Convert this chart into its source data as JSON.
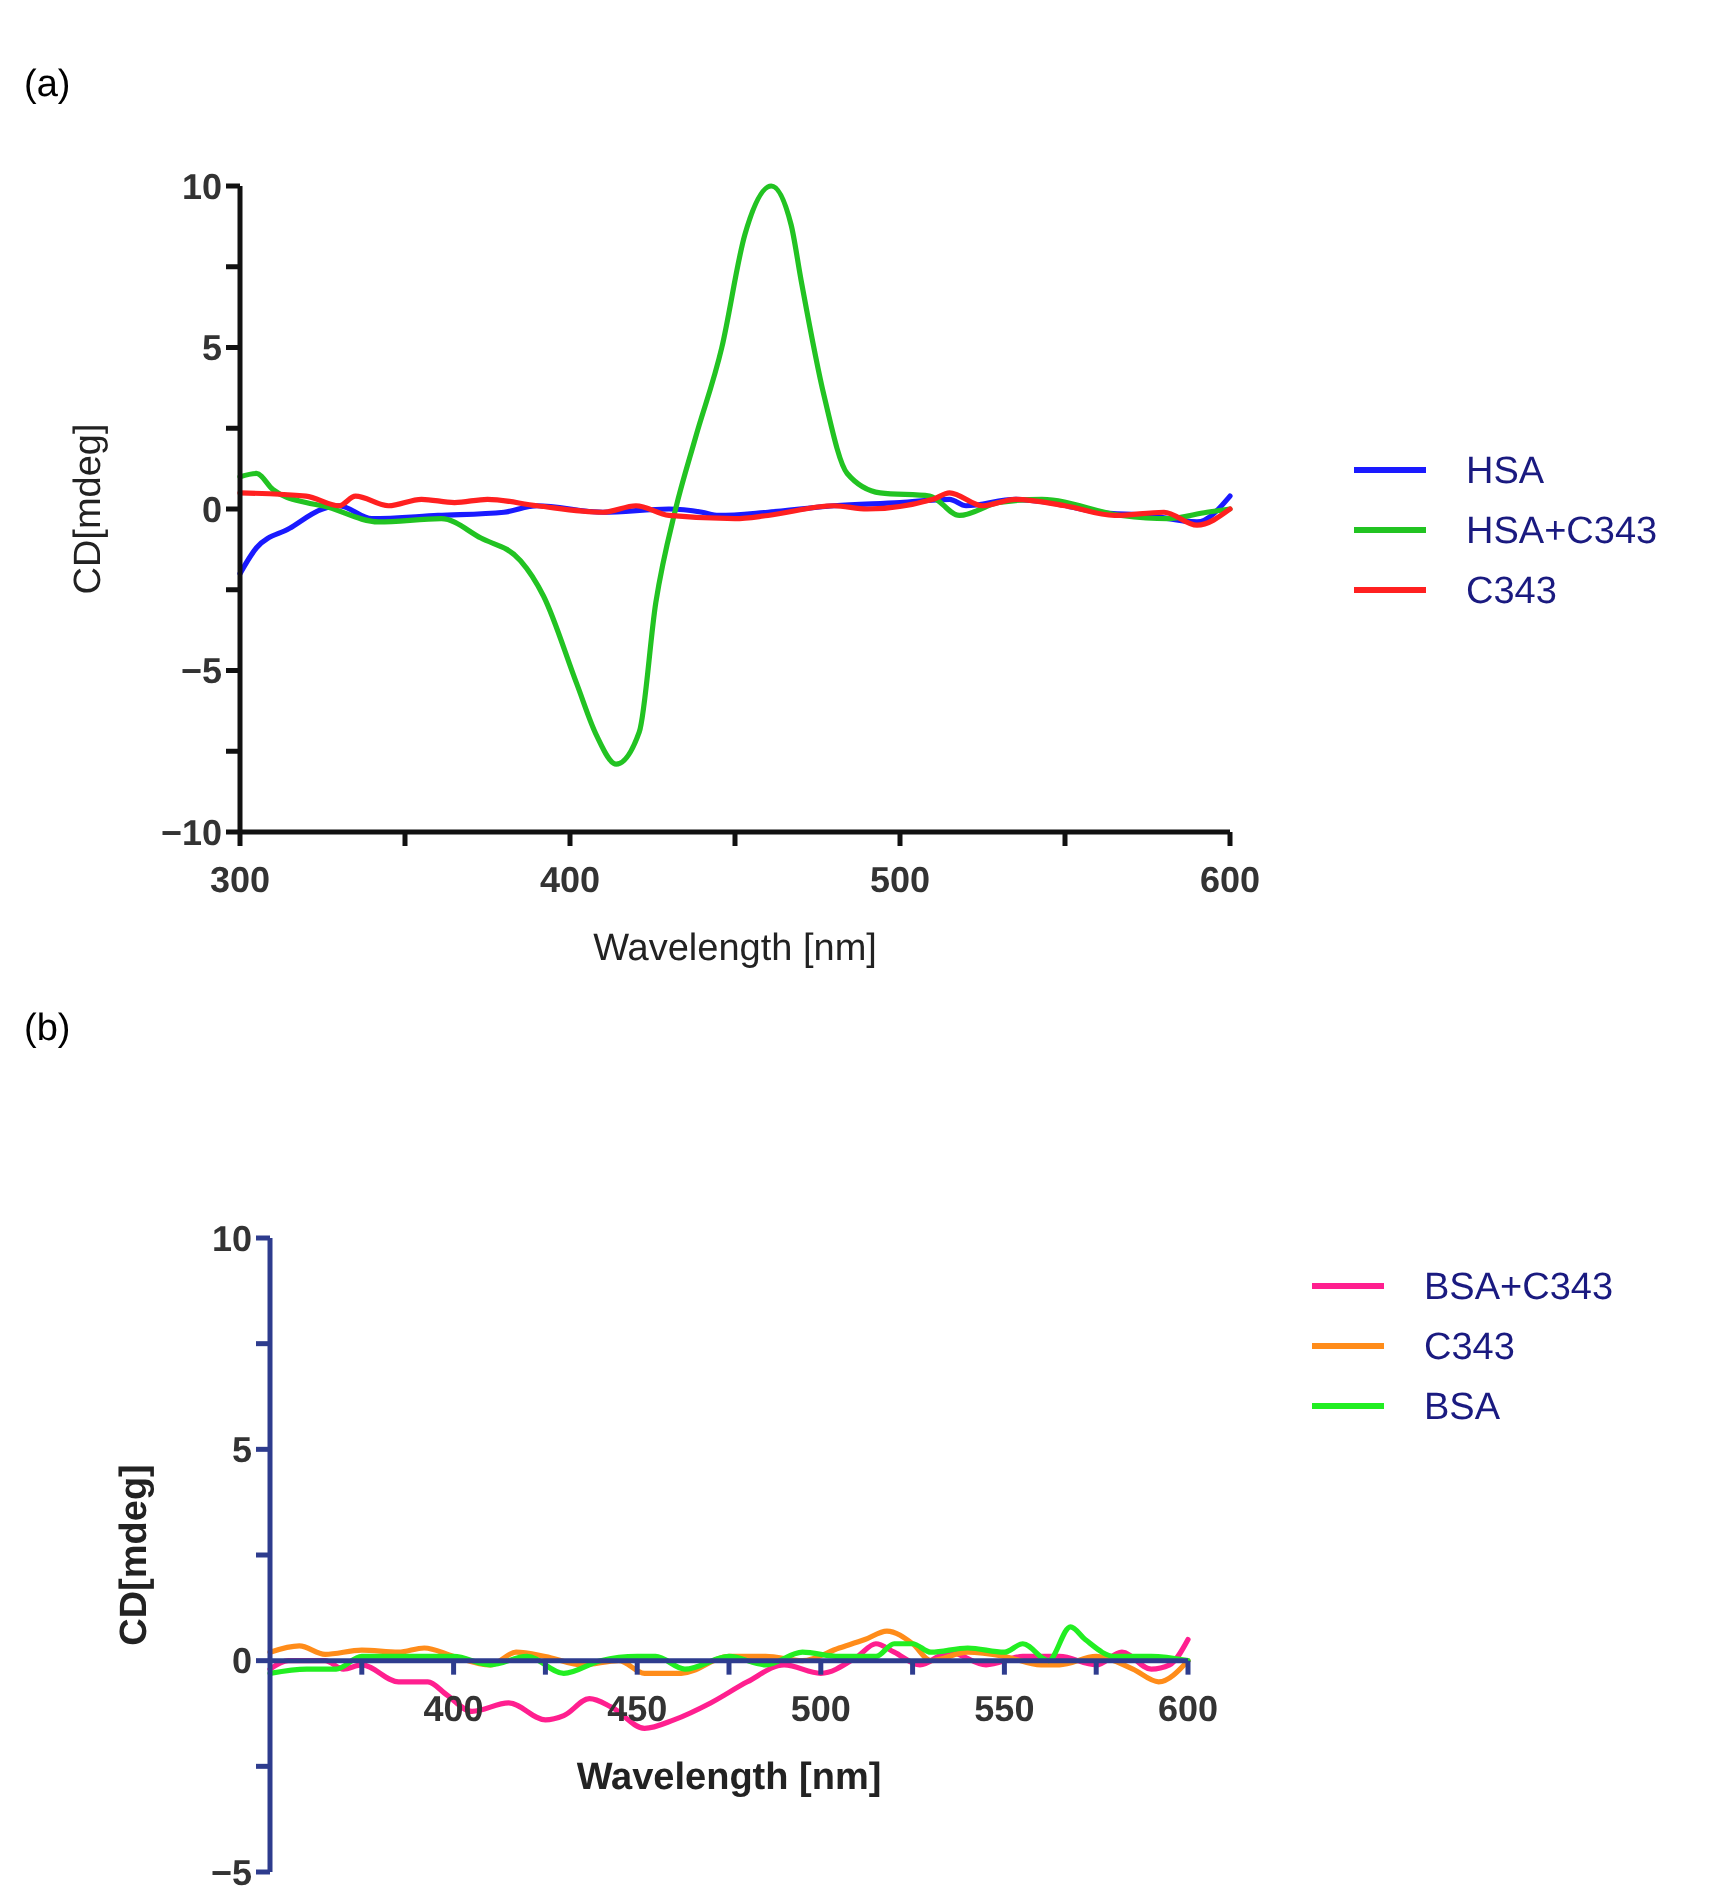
{
  "chart_data": [
    {
      "type": "line",
      "title": "(a)",
      "xlabel": "Wavelength [nm]",
      "ylabel": "CD[mdeg]",
      "xlim": [
        300,
        600
      ],
      "ylim": [
        -10,
        10
      ],
      "xticks": [
        300,
        {
          "value": 350,
          "label": null
        },
        400,
        {
          "value": 450,
          "label": null
        },
        500,
        {
          "value": 550,
          "label": null
        },
        600
      ],
      "yticks": [
        {
          "value": -10,
          "label": "−10"
        },
        {
          "value": -7.5,
          "label": null
        },
        {
          "value": -5,
          "label": "−5"
        },
        {
          "value": -2.5,
          "label": null
        },
        0,
        {
          "value": 2.5,
          "label": null
        },
        5,
        {
          "value": 7.5,
          "label": null
        },
        10
      ],
      "grid": false,
      "legend": "right",
      "line_style": "solid",
      "series": [
        {
          "name": "HSA",
          "color": "#1a1aff",
          "x": [
            300,
            305,
            315,
            325,
            330,
            340,
            360,
            380,
            390,
            410,
            430,
            440,
            445,
            460,
            480,
            500,
            515,
            520,
            535,
            545,
            560,
            575,
            590,
            600
          ],
          "values": [
            -2.0,
            -1.2,
            -0.6,
            0,
            0.1,
            -0.3,
            -0.2,
            -0.1,
            0.1,
            -0.1,
            0,
            -0.1,
            -0.2,
            -0.1,
            0.1,
            0.2,
            0.3,
            0.1,
            0.3,
            0.2,
            -0.1,
            -0.2,
            -0.4,
            0.4
          ]
        },
        {
          "name": "HSA+C343",
          "color": "#22c322",
          "x": [
            300,
            305,
            310,
            320,
            325,
            342,
            361,
            373,
            385,
            392,
            402,
            408,
            414,
            421,
            426,
            432,
            438,
            446,
            453,
            461,
            467,
            470,
            477,
            484,
            494,
            509,
            518,
            530,
            543,
            567,
            581,
            593,
            600
          ],
          "values": [
            1.0,
            1.1,
            0.6,
            0.2,
            0.1,
            -0.4,
            -0.3,
            -0.9,
            -1.6,
            -2.7,
            -5.4,
            -7.0,
            -7.9,
            -6.9,
            -2.9,
            0,
            2.2,
            5.0,
            8.5,
            10.0,
            8.8,
            7.1,
            3.5,
            1.1,
            0.5,
            0.4,
            -0.2,
            0.2,
            0.3,
            -0.2,
            -0.3,
            -0.1,
            0
          ]
        },
        {
          "name": "C343",
          "color": "#ff2020",
          "x": [
            300,
            320,
            330,
            335,
            345,
            355,
            365,
            375,
            390,
            410,
            420,
            430,
            450,
            460,
            480,
            490,
            510,
            515,
            525,
            535,
            550,
            565,
            580,
            590,
            600
          ],
          "values": [
            0.5,
            0.4,
            0.1,
            0.4,
            0.1,
            0.3,
            0.2,
            0.3,
            0.1,
            -0.1,
            0.1,
            -0.2,
            -0.3,
            -0.2,
            0.1,
            0,
            0.3,
            0.5,
            0.1,
            0.3,
            0.1,
            -0.2,
            -0.1,
            -0.5,
            0
          ]
        }
      ]
    },
    {
      "type": "line",
      "title": "(b)",
      "xlabel": "Wavelength [nm]",
      "ylabel": "CD[mdeg]",
      "xlim": [
        350,
        600
      ],
      "ylim": [
        -5,
        10
      ],
      "xticks": [
        {
          "value": 375,
          "label": null
        },
        400,
        {
          "value": 425,
          "label": null
        },
        450,
        {
          "value": 475,
          "label": null
        },
        500,
        {
          "value": 525,
          "label": null
        },
        550,
        {
          "value": 575,
          "label": null
        },
        600
      ],
      "yticks": [
        {
          "value": -5,
          "label": "−5"
        },
        {
          "value": -2.5,
          "label": null
        },
        0,
        {
          "value": 2.5,
          "label": null
        },
        5,
        {
          "value": 7.5,
          "label": null
        },
        10
      ],
      "grid": false,
      "legend": "right",
      "line_style": "solid",
      "series": [
        {
          "name": "BSA+C343",
          "color": "#ff1f8f",
          "x": [
            350,
            355,
            365,
            370,
            375,
            385,
            393,
            398,
            405,
            415,
            425,
            430,
            437,
            443,
            452,
            460,
            470,
            480,
            490,
            500,
            510,
            515,
            520,
            527,
            535,
            545,
            555,
            565,
            575,
            582,
            590,
            595,
            600
          ],
          "values": [
            -0.2,
            0,
            0,
            -0.2,
            -0.1,
            -0.5,
            -0.5,
            -0.8,
            -1.2,
            -1.0,
            -1.4,
            -1.3,
            -0.9,
            -1.1,
            -1.6,
            -1.4,
            -1.0,
            -0.5,
            -0.1,
            -0.3,
            0.1,
            0.4,
            0.2,
            -0.1,
            0.2,
            -0.1,
            0.1,
            0.1,
            -0.1,
            0.2,
            -0.2,
            -0.1,
            0.5
          ]
        },
        {
          "name": "C343",
          "color": "#ff8c1a",
          "x": [
            350,
            358,
            365,
            375,
            385,
            392,
            400,
            410,
            417,
            425,
            435,
            445,
            452,
            462,
            475,
            485,
            495,
            505,
            512,
            518,
            525,
            530,
            540,
            550,
            560,
            565,
            575,
            585,
            592,
            600
          ],
          "values": [
            0.2,
            0.35,
            0.15,
            0.25,
            0.2,
            0.3,
            0.1,
            -0.1,
            0.2,
            0.1,
            -0.1,
            0,
            -0.3,
            -0.3,
            0.1,
            0.1,
            0,
            0.3,
            0.5,
            0.7,
            0.4,
            0,
            0.2,
            0.1,
            -0.1,
            -0.1,
            0.1,
            -0.2,
            -0.5,
            0
          ]
        },
        {
          "name": "BSA",
          "color": "#22ee22",
          "x": [
            350,
            360,
            368,
            375,
            390,
            400,
            410,
            420,
            430,
            440,
            450,
            455,
            463,
            475,
            485,
            495,
            505,
            515,
            520,
            525,
            530,
            540,
            550,
            555,
            562,
            568,
            572,
            580,
            590,
            600
          ],
          "values": [
            -0.3,
            -0.2,
            -0.2,
            0.1,
            0.1,
            0.1,
            -0.1,
            0.1,
            -0.3,
            0,
            0.1,
            0.1,
            -0.2,
            0.1,
            -0.1,
            0.2,
            0.1,
            0.1,
            0.4,
            0.4,
            0.2,
            0.3,
            0.2,
            0.4,
            0,
            0.8,
            0.5,
            0.1,
            0.1,
            0
          ]
        }
      ]
    }
  ]
}
